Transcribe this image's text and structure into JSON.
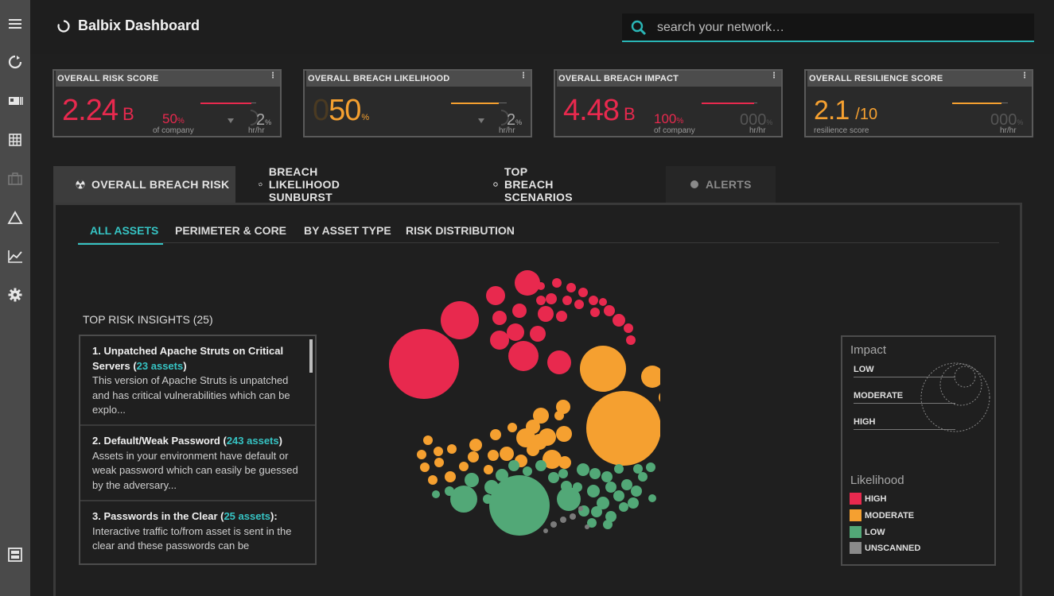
{
  "header": {
    "title": "Balbix Dashboard",
    "search_placeholder": "search your network…"
  },
  "sidebar": {
    "icons": [
      "menu-icon",
      "refresh-icon",
      "id-card-icon",
      "grid-icon",
      "briefcase-icon",
      "triangle-icon",
      "chart-icon",
      "gear-icon",
      "panel-icon"
    ]
  },
  "kpis": [
    {
      "title": "OVERALL RISK SCORE",
      "value": "2.24",
      "unit": "B",
      "mid_value": "50",
      "mid_unit": "%",
      "mid_label": "of company",
      "rate": "2",
      "rate_unit": "%",
      "rate_label": "hr/hr",
      "accent": "#e8294e"
    },
    {
      "title": "OVERALL BREACH LIKELIHOOD",
      "prefix": "0",
      "value": "50",
      "unit": "%",
      "rate": "2",
      "rate_unit": "%",
      "rate_label": "hr/hr",
      "accent": "#f5a030"
    },
    {
      "title": "OVERALL BREACH IMPACT",
      "value": "4.48",
      "unit": "B",
      "mid_value": "100",
      "mid_unit": "%",
      "mid_label": "of company",
      "rate": "000",
      "rate_unit": "%",
      "rate_label": "hr/hr",
      "accent": "#e8294e"
    },
    {
      "title": "OVERALL RESILIENCE SCORE",
      "value": "2.1",
      "unit": "/10",
      "mid_label": "resilience score",
      "rate": "000",
      "rate_unit": "%",
      "rate_label": "hr/hr",
      "accent": "#f5a030"
    }
  ],
  "tabs": [
    {
      "label": "OVERALL BREACH RISK",
      "state": "active"
    },
    {
      "label": "BREACH LIKELIHOOD SUNBURST",
      "state": "normal"
    },
    {
      "label": "TOP BREACH SCENARIOS",
      "state": "normal"
    },
    {
      "label": "ALERTS",
      "state": "disabled"
    }
  ],
  "subtabs": [
    {
      "label": "ALL ASSETS",
      "active": true
    },
    {
      "label": "PERIMETER & CORE",
      "active": false
    },
    {
      "label": "BY ASSET TYPE",
      "active": false
    },
    {
      "label": "RISK DISTRIBUTION",
      "active": false
    }
  ],
  "insights": {
    "title": "TOP RISK INSIGHTS (25)",
    "items": [
      {
        "title": "1. Unpatched Apache Struts on Critical Servers (",
        "count": "23 assets",
        "close": ")",
        "desc": "This version of Apache Struts is unpatched and has critical vulnerabilities which can be explo..."
      },
      {
        "title": "2. Default/Weak Password (",
        "count": "243 assets",
        "close": ")",
        "desc": "Assets in your environment have default or weak password which can easily be guessed by the adversary..."
      },
      {
        "title": "3. Passwords in the Clear (",
        "count": "25 assets",
        "close": "):",
        "desc": "Interactive traffic to/from asset is sent in the clear and these passwords can be"
      }
    ]
  },
  "legend": {
    "impact_title": "Impact",
    "impact_levels": [
      "LOW",
      "MODERATE",
      "HIGH"
    ],
    "likelihood_title": "Likelihood",
    "likelihood_levels": [
      {
        "label": "HIGH",
        "color": "#e8294e"
      },
      {
        "label": "MODERATE",
        "color": "#f5a030"
      },
      {
        "label": "LOW",
        "color": "#52a877"
      },
      {
        "label": "UNSCANNED",
        "color": "#8a8a8a"
      }
    ]
  }
}
